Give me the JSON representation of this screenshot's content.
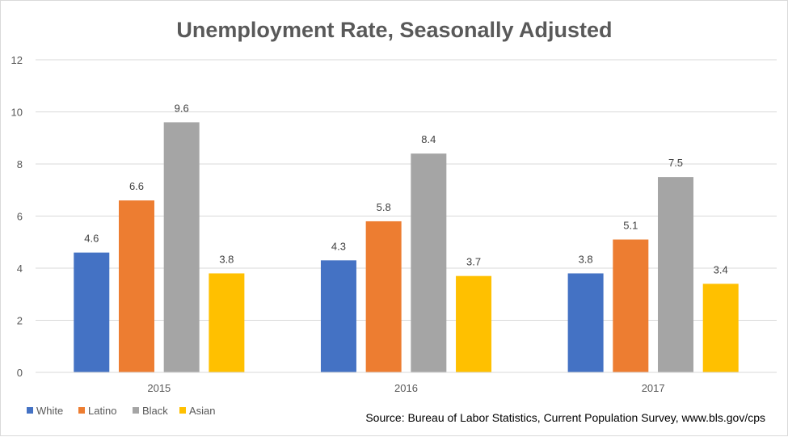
{
  "chart_data": {
    "type": "bar",
    "title": "Unemployment Rate, Seasonally Adjusted",
    "categories": [
      "2015",
      "2016",
      "2017"
    ],
    "series": [
      {
        "name": "White",
        "color": "#4472C4",
        "values": [
          4.6,
          4.3,
          3.8
        ]
      },
      {
        "name": "Latino",
        "color": "#ED7D31",
        "values": [
          6.6,
          5.8,
          5.1
        ]
      },
      {
        "name": "Black",
        "color": "#A5A5A5",
        "values": [
          9.6,
          8.4,
          7.5
        ]
      },
      {
        "name": "Asian",
        "color": "#FFC000",
        "values": [
          3.8,
          3.7,
          3.4
        ]
      }
    ],
    "data_labels": [
      [
        "4.6",
        "4.3",
        "3.8"
      ],
      [
        "6.6",
        "5.8",
        "5.1"
      ],
      [
        "9.6",
        "8.4",
        "7.5"
      ],
      [
        "3.8",
        "3.7",
        "3.4"
      ]
    ],
    "ylim": [
      0,
      12
    ],
    "yticks": [
      "0",
      "2",
      "4",
      "6",
      "8",
      "10",
      "12"
    ],
    "grid": true,
    "legend_position": "bottom-left",
    "source": "Source: Bureau of Labor Statistics, Current Population Survey, www.bls.gov/cps"
  }
}
